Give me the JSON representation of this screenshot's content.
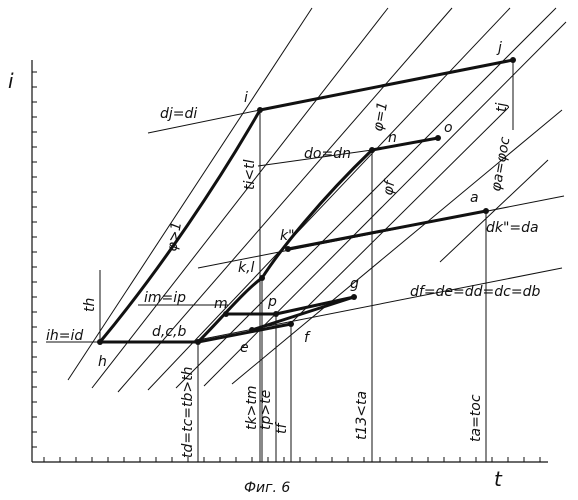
{
  "axes": {
    "y_label": "i",
    "x_label": "t"
  },
  "caption": "Фиг. 6",
  "points": {
    "h": "h",
    "i": "i",
    "j": "j",
    "n": "n",
    "o": "o",
    "k": "k\"",
    "kl": "k,l",
    "a": "a",
    "m": "m",
    "p": "p",
    "g": "g",
    "dcb": "d,c,b",
    "e": "e",
    "f": "f"
  },
  "line_labels": {
    "dj_di": "dj=di",
    "do_dn": "do=dn",
    "ih_id": "ih=id",
    "im_ip": "im=ip",
    "df_db": "df=de=dd=dc=db",
    "dk_da": "dk\"=da"
  },
  "phi_labels": {
    "phi_gt1": "φ>1",
    "phi_eq1": "φ=1",
    "phi_f": "φf",
    "phi_a": "φa=φoc"
  },
  "vertical_labels": {
    "th": "th",
    "ti_tl": "ti<tl",
    "tj": "tj",
    "td": "td=tc=tb>th",
    "tk_tm": "tk>tm",
    "tp_te": "tp>te",
    "tf": "tf",
    "t13_ta": "t13<ta",
    "ta_toc": "ta=toc"
  }
}
